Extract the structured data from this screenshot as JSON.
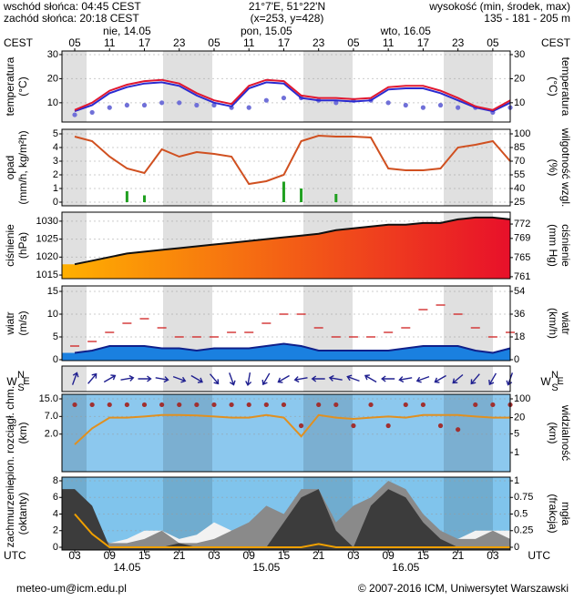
{
  "header": {
    "sunrise": "wschód słońca: 04:45 CEST",
    "sunset": "zachód słońca: 20:18 CEST",
    "coords": "21°7'E, 51°22'N",
    "grid": "(x=253, y=428)",
    "elev_title": "wysokość (min, środek, max)",
    "elev": "135 - 181 - 205 m"
  },
  "footer": {
    "email": "meteo-um@icm.edu.pl",
    "copyright": "© 2007-2016 ICM, Uniwersytet Warszawski"
  },
  "time": {
    "x": [
      3,
      6,
      9,
      12,
      15,
      18,
      21,
      24,
      27,
      30,
      33,
      36,
      39,
      42,
      45,
      48,
      51,
      54,
      57,
      60,
      63,
      66,
      69,
      72,
      75,
      78
    ],
    "xlim": [
      0.8,
      78
    ],
    "cest_label": "CEST",
    "utc_label": "UTC",
    "cest_ticks": [
      {
        "value": 3,
        "label": "05"
      },
      {
        "value": 9,
        "label": "11"
      },
      {
        "value": 15,
        "label": "17"
      },
      {
        "value": 21,
        "label": "23"
      },
      {
        "value": 27,
        "label": "05"
      },
      {
        "value": 33,
        "label": "11"
      },
      {
        "value": 39,
        "label": "17"
      },
      {
        "value": 45,
        "label": "23"
      },
      {
        "value": 51,
        "label": "05"
      },
      {
        "value": 57,
        "label": "11"
      },
      {
        "value": 63,
        "label": "17"
      },
      {
        "value": 69,
        "label": "23"
      },
      {
        "value": 75,
        "label": "05"
      }
    ],
    "utc_ticks": [
      {
        "value": 3,
        "label": "03"
      },
      {
        "value": 9,
        "label": "09"
      },
      {
        "value": 15,
        "label": "15"
      },
      {
        "value": 21,
        "label": "21"
      },
      {
        "value": 27,
        "label": "03"
      },
      {
        "value": 33,
        "label": "09"
      },
      {
        "value": 39,
        "label": "15"
      },
      {
        "value": 45,
        "label": "21"
      },
      {
        "value": 51,
        "label": "03"
      },
      {
        "value": 57,
        "label": "09"
      },
      {
        "value": 63,
        "label": "15"
      },
      {
        "value": 69,
        "label": "21"
      },
      {
        "value": 75,
        "label": "03"
      }
    ],
    "cest_days": [
      "nie, 14.05",
      "pon, 15.05",
      "wto, 16.05"
    ],
    "utc_days": [
      "14.05",
      "15.05",
      "16.05"
    ]
  },
  "chart_data": [
    {
      "type": "line",
      "ylabel": [
        "temperatura",
        "(°C)"
      ],
      "y2label": [
        "(°C)",
        "temperatura"
      ],
      "ylim": [
        2,
        31.5
      ],
      "yticks": [
        10,
        20,
        30
      ],
      "y2ticks": [
        10,
        20,
        30
      ],
      "grid": true,
      "series": [
        {
          "type": "dots",
          "color": "#7070d8",
          "values": [
            5,
            6,
            8,
            9,
            9,
            10,
            10,
            9,
            9,
            8,
            8,
            11,
            12,
            12,
            11,
            10,
            11,
            11,
            10,
            9,
            8,
            9,
            8,
            8,
            6,
            8
          ]
        },
        {
          "color": "#2a2ad0",
          "values": [
            6.5,
            9,
            14,
            16.5,
            18,
            18.5,
            17,
            13,
            10,
            8.5,
            16,
            18.5,
            18,
            12,
            11,
            11,
            10.5,
            11,
            15.5,
            16,
            16,
            14,
            11,
            8,
            6.5,
            10
          ]
        },
        {
          "color": "#e01830",
          "values": [
            7,
            10,
            15,
            17.5,
            19,
            19.5,
            18,
            14,
            11,
            9.5,
            17,
            19.5,
            19,
            13,
            12,
            12,
            11.5,
            12,
            16.5,
            17,
            17,
            15,
            12,
            8.5,
            7,
            11
          ]
        }
      ]
    },
    {
      "type": "bar",
      "ylabel": [
        "opad",
        "(mm/h, kg/m²h)"
      ],
      "y2label": [
        "(%)",
        "wilgotność wzgl."
      ],
      "ylim": [
        0,
        5
      ],
      "yticks": [
        0,
        1,
        2,
        3,
        4,
        5
      ],
      "y2lim": [
        25,
        100
      ],
      "y2ticks": [
        25,
        40,
        55,
        70,
        85,
        100
      ],
      "grid": true,
      "series": [
        {
          "color": "#20a020",
          "values": [
            0,
            0,
            0,
            0.8,
            0.5,
            0,
            0,
            0,
            0,
            0,
            0,
            0,
            1.5,
            1,
            0,
            0.6,
            0,
            0,
            0,
            0,
            0,
            0,
            0,
            0,
            0,
            0
          ]
        },
        {
          "type": "line",
          "axis": "y2",
          "color": "#d05020",
          "values": [
            97,
            92,
            75,
            62,
            57,
            83,
            75,
            80,
            78,
            75,
            45,
            48,
            55,
            92,
            98,
            97,
            97,
            96,
            62,
            60,
            60,
            62,
            85,
            88,
            92,
            70
          ]
        }
      ]
    },
    {
      "type": "area",
      "ylabel": [
        "ciśnienie",
        "(hPa)"
      ],
      "y2label": [
        "(mm Hg)",
        "ciśnienie"
      ],
      "ylim": [
        1014,
        1032
      ],
      "yticks": [
        1015,
        1020,
        1025,
        1030
      ],
      "y2lim": [
        760.6,
        774.1
      ],
      "y2ticks": [
        761,
        765,
        769,
        772
      ],
      "grid": true,
      "series": [
        {
          "colors": [
            "#ffb000",
            "#e8102a"
          ],
          "outline": "#101010",
          "values": [
            1018,
            1019,
            1020,
            1021,
            1021.5,
            1022,
            1022.5,
            1023,
            1023.5,
            1024,
            1024.5,
            1025,
            1025.5,
            1026,
            1026.5,
            1027.5,
            1028,
            1028.5,
            1029,
            1029,
            1029.5,
            1029.5,
            1030.5,
            1031,
            1031,
            1030.5
          ]
        }
      ]
    },
    {
      "type": "area",
      "ylabel": [
        "wiatr",
        "(m/s)"
      ],
      "y2label": [
        "(km/h)",
        "wiatr"
      ],
      "ylim": [
        0,
        15
      ],
      "yticks": [
        0,
        5,
        10,
        15
      ],
      "y2lim": [
        0,
        54
      ],
      "y2ticks": [
        0,
        18,
        36,
        54
      ],
      "grid": true,
      "series": [
        {
          "color": "#1a80e0",
          "outline": "#10208a",
          "values": [
            1.5,
            2,
            3,
            3,
            3,
            2.5,
            2.5,
            2,
            2.5,
            2.5,
            2.5,
            3,
            3.5,
            3,
            2,
            2,
            2,
            2,
            2,
            2.5,
            3,
            3,
            3,
            2,
            1.5,
            2.5
          ]
        },
        {
          "type": "dashes",
          "color": "#d02020",
          "values": [
            3,
            4,
            6,
            8,
            9,
            7,
            5,
            5,
            5,
            6,
            6,
            8,
            10,
            10,
            7,
            5,
            5,
            5,
            6,
            7,
            11,
            12,
            10,
            7,
            5,
            6
          ]
        }
      ]
    },
    {
      "type": "arrows",
      "compass": [
        "W",
        "S",
        "N",
        "E"
      ],
      "series": [
        {
          "color": "#202090",
          "values": [
            200,
            220,
            240,
            260,
            270,
            280,
            290,
            300,
            320,
            340,
            10,
            30,
            60,
            80,
            90,
            100,
            110,
            120,
            90,
            80,
            70,
            60,
            50,
            40,
            30,
            20
          ]
        }
      ]
    },
    {
      "type": "scatter",
      "ylabel": [
        "pion. rozciągł. chm.",
        "(km)"
      ],
      "y2label": [
        "(km)",
        "widzialność"
      ],
      "yscale": "sqrt",
      "ylim": [
        0,
        15
      ],
      "yticks": [
        {
          "value": 2,
          "label": "2.0"
        },
        {
          "value": 7,
          "label": "7.0"
        },
        {
          "value": 15,
          "label": "15.0"
        }
      ],
      "y2scale": "log",
      "y2lim": [
        1,
        100
      ],
      "y2ticks": [
        1,
        5,
        20,
        100
      ],
      "grid": true,
      "series": [
        {
          "type": "line",
          "axis": "y2",
          "color": "#e09020",
          "values": [
            2,
            8,
            20,
            20,
            22,
            25,
            25,
            24,
            22,
            20,
            20,
            25,
            20,
            4,
            25,
            20,
            18,
            20,
            22,
            20,
            25,
            25,
            25,
            22,
            20,
            20
          ]
        },
        {
          "type": "dots",
          "color": "#a03030",
          "values": [
            12,
            12,
            12,
            12,
            12,
            12,
            12,
            12,
            12,
            12,
            12,
            12,
            12,
            4,
            12,
            12,
            4,
            12,
            4,
            12,
            12,
            4,
            3,
            12,
            12,
            12
          ]
        }
      ]
    },
    {
      "type": "area",
      "ylabel": [
        "zachmurzenie",
        "(oktanty)"
      ],
      "y2label": [
        "(frakcja)",
        "mgła"
      ],
      "ylim": [
        0,
        8
      ],
      "yticks": [
        0,
        2,
        4,
        6,
        8
      ],
      "y2lim": [
        0,
        1
      ],
      "y2ticks": [
        0,
        0.25,
        0.5,
        0.75,
        1
      ],
      "grid": true,
      "series": [
        {
          "color": "#f2f2f2",
          "values": [
            0,
            0,
            0.5,
            1,
            2,
            2,
            1,
            1.5,
            3,
            2,
            2,
            2,
            3,
            5,
            3,
            1,
            1,
            1,
            1,
            1,
            0,
            1,
            1,
            2,
            2,
            2
          ]
        },
        {
          "color": "#8a8a8a",
          "values": [
            5,
            2,
            0.5,
            0.5,
            1,
            2,
            0.5,
            0.5,
            1,
            2,
            3,
            5,
            4,
            7,
            7,
            3,
            5,
            6,
            8,
            7,
            4,
            2,
            1,
            1,
            2,
            1
          ]
        },
        {
          "color": "#3c3c3c",
          "values": [
            7,
            5,
            0,
            0,
            0,
            0,
            0.5,
            0,
            0,
            0,
            0,
            0,
            3,
            6,
            7,
            2,
            0,
            5,
            7,
            6,
            3,
            1,
            0,
            0,
            0,
            0
          ]
        },
        {
          "type": "line",
          "axis": "y2",
          "color": "#f0a000",
          "values": [
            0.5,
            0.2,
            0,
            0,
            0,
            0,
            0,
            0,
            0,
            0,
            0,
            0,
            0,
            0,
            0.05,
            0,
            0,
            0,
            0,
            0,
            0,
            0,
            0,
            0,
            0,
            0
          ]
        }
      ]
    }
  ]
}
